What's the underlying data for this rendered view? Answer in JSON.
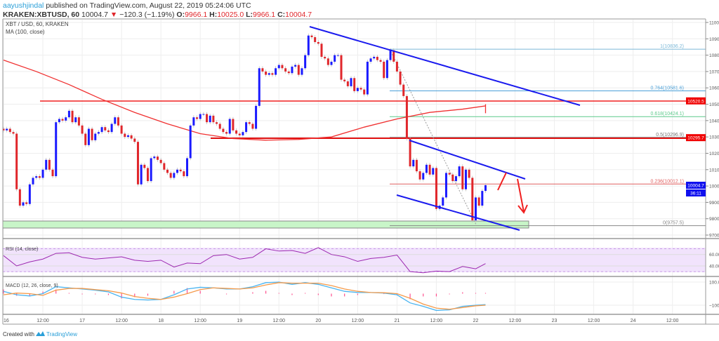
{
  "header": {
    "username": "aayushjindal",
    "published": "published on TradingView.com, August 22, 2019 05:24:06 UTC",
    "symbol": "KRAKEN:XBTUSD, 60",
    "last": "10004.7",
    "change": "−120.3 (−1.19%)",
    "o_label": "O:",
    "o": "9966.1",
    "h_label": "H:",
    "h": "10025.0",
    "l_label": "L:",
    "l": "9966.1",
    "c_label": "C:",
    "c": "10004.7",
    "down_color": "#e0262b"
  },
  "footer": {
    "created_with": "Created with",
    "brand": "TradingView"
  },
  "chart_data": [
    {
      "type": "candlestick",
      "title": "XBT / USD, 60, KRAKEN",
      "ma_label": "MA (100, close)",
      "interval": "60",
      "x_start": "16 00:00",
      "closes_hourly": [
        10340,
        10350,
        10330,
        10320,
        9980,
        9880,
        9900,
        9890,
        10010,
        10050,
        10060,
        10050,
        10100,
        10160,
        10100,
        10060,
        10390,
        10410,
        10400,
        10420,
        10460,
        10390,
        10420,
        10370,
        10320,
        10250,
        10350,
        10280,
        10320,
        10330,
        10360,
        10340,
        10330,
        10380,
        10420,
        10370,
        10320,
        10300,
        10310,
        10290,
        10270,
        10010,
        10130,
        10110,
        10030,
        10170,
        10180,
        10160,
        10140,
        10100,
        10080,
        10050,
        10080,
        10100,
        10090,
        10060,
        10170,
        10370,
        10420,
        10410,
        10440,
        10440,
        10390,
        10430,
        10390,
        10380,
        10350,
        10330,
        10320,
        10410,
        10340,
        10320,
        10310,
        10330,
        10390,
        10380,
        10350,
        10490,
        10720,
        10700,
        10680,
        10690,
        10680,
        10720,
        10740,
        10720,
        10700,
        10690,
        10730,
        10740,
        10680,
        10720,
        10800,
        10920,
        10910,
        10880,
        10870,
        10790,
        10780,
        10740,
        10760,
        10800,
        10800,
        10650,
        10640,
        10610,
        10660,
        10580,
        10600,
        10590,
        10560,
        10760,
        10780,
        10790,
        10770,
        10760,
        10660,
        10770,
        10830,
        10760,
        10700,
        10620,
        10550,
        10290,
        10120,
        10160,
        10090,
        10040,
        10080,
        10130,
        10070,
        10110,
        9860,
        9880,
        9930,
        10080,
        10070,
        10030,
        10060,
        10120,
        9980,
        10100,
        10050,
        9790,
        9930,
        9880,
        9970,
        10005
      ],
      "ma100_every_10h": [
        10770,
        10700,
        10620,
        10530,
        10450,
        10380,
        10320,
        10290,
        10280,
        10285,
        10300,
        10360,
        10410,
        10450,
        10470,
        10490,
        10500,
        10498,
        10480,
        10455,
        10445
      ],
      "up_color": "#1a1aff",
      "down_color": "#e0262b",
      "ma_color": "#f03030",
      "ylim": [
        9700,
        11000
      ],
      "y_ticks": [
        "11000.0",
        "10900.0",
        "10800.0",
        "10700.0",
        "10600.0",
        "10500.0",
        "10400.0",
        "10300.0",
        "10200.0",
        "10100.0",
        "10000.0",
        "9900.0",
        "9800.0",
        "9700.0"
      ],
      "x_ticks": [
        "16",
        "12:00",
        "17",
        "12:00",
        "18",
        "12:00",
        "19",
        "12:00",
        "20",
        "12:00",
        "21",
        "12:00",
        "22",
        "12:00",
        "23",
        "12:00",
        "24",
        "12:00"
      ],
      "price_tags": [
        {
          "text": "10520.5",
          "color": "#f00000"
        },
        {
          "text": "10295.7",
          "color": "#f00000"
        },
        {
          "text": "10004.7",
          "color": "#1010ee"
        },
        {
          "text": "36:11",
          "color": "#1010ee"
        }
      ],
      "fibonacci": [
        {
          "label": "1(10836.2)",
          "price": 10836.2,
          "color": "#7ab8d8"
        },
        {
          "label": "0.764(10581.6)",
          "price": 10581.6,
          "color": "#4aa0d8"
        },
        {
          "label": "0.618(10424.1)",
          "price": 10424.1,
          "color": "#5cc98a"
        },
        {
          "label": "0.5(10296.9)",
          "price": 10296.9,
          "color": "#777777"
        },
        {
          "label": "0.236(10012.1)",
          "price": 10012.1,
          "color": "#e06060"
        },
        {
          "label": "0(9757.5)",
          "price": 9757.5,
          "color": "#888888"
        }
      ],
      "horizontal_levels": [
        10520.5,
        10295.7
      ],
      "support_zone": [
        9740,
        9780
      ]
    },
    {
      "type": "line",
      "title": "RSI (14, close)",
      "x_step_hours": 4,
      "values": [
        58,
        40,
        47,
        52,
        62,
        63,
        55,
        52,
        54,
        56,
        50,
        48,
        50,
        38,
        45,
        44,
        58,
        60,
        52,
        55,
        70,
        66,
        67,
        62,
        72,
        60,
        56,
        48,
        53,
        55,
        59,
        30,
        28,
        31,
        30,
        39,
        35,
        44
      ],
      "band": [
        30,
        70
      ],
      "y_ticks": [
        "60.00",
        "40.00"
      ],
      "color": "#9c27b0",
      "band_color": "#f1e3fc"
    },
    {
      "type": "line",
      "title": "MACD (12, 26, close, 9)",
      "x_step_hours": 4,
      "series": [
        {
          "values": [
            20,
            -10,
            -20,
            0,
            60,
            50,
            40,
            30,
            15,
            -30,
            -50,
            -55,
            -50,
            -10,
            40,
            55,
            50,
            40,
            40,
            60,
            95,
            100,
            80,
            95,
            80,
            50,
            20,
            10,
            10,
            5,
            -10,
            -80,
            -110,
            -145,
            -140,
            -110,
            -100,
            -95
          ],
          "color": "#4ab4f0"
        },
        {
          "values": [
            -10,
            5,
            0,
            -15,
            30,
            45,
            45,
            35,
            25,
            5,
            -25,
            -40,
            -50,
            -30,
            0,
            35,
            50,
            45,
            40,
            50,
            75,
            95,
            90,
            90,
            90,
            70,
            40,
            20,
            10,
            8,
            0,
            -40,
            -90,
            -125,
            -135,
            -120,
            -105,
            -100
          ],
          "color": "#f59a4a"
        }
      ],
      "histogram_color": "#ff4d8d",
      "y_ticks": [
        "100.0",
        "−100.0"
      ]
    }
  ]
}
